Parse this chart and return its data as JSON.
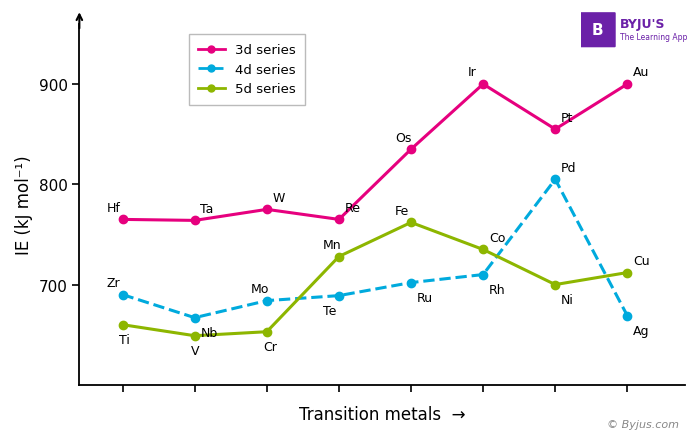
{
  "series_3d": {
    "label": "3d series",
    "color": "#e6007e",
    "linestyle": "-",
    "linewidth": 2.2,
    "marker": "o",
    "markersize": 6,
    "elements": [
      "Hf",
      "Ta",
      "W",
      "Re",
      "Os",
      "Ir",
      "Pt",
      "Au"
    ],
    "x": [
      1,
      2,
      3,
      4,
      5,
      6,
      7,
      8
    ],
    "y": [
      765,
      764,
      775,
      765,
      835,
      900,
      855,
      900
    ],
    "label_dx": [
      -0.22,
      0.08,
      0.08,
      0.08,
      -0.22,
      -0.22,
      0.08,
      0.08
    ],
    "label_dy": [
      12,
      12,
      12,
      12,
      12,
      12,
      12,
      12
    ]
  },
  "series_4d": {
    "label": "4d series",
    "color": "#00aadd",
    "linestyle": "--",
    "linewidth": 2.2,
    "marker": "o",
    "markersize": 6,
    "elements": [
      "Zr",
      "Nb",
      "Mo",
      "Te",
      "Ru",
      "Rh",
      "Pd",
      "Ag"
    ],
    "x": [
      1,
      2,
      3,
      4,
      5,
      6,
      7,
      8
    ],
    "y": [
      690,
      667,
      684,
      689,
      702,
      710,
      805,
      669
    ],
    "label_dx": [
      -0.22,
      0.08,
      -0.22,
      -0.22,
      0.08,
      0.08,
      0.08,
      0.08
    ],
    "label_dy": [
      12,
      -15,
      12,
      -15,
      -15,
      -15,
      12,
      -15
    ]
  },
  "series_5d": {
    "label": "5d series",
    "color": "#8db600",
    "linestyle": "-",
    "linewidth": 2.2,
    "marker": "o",
    "markersize": 6,
    "elements": [
      "Ti",
      "V",
      "Cr",
      "Mn",
      "Fe",
      "Co",
      "Ni",
      "Cu"
    ],
    "x": [
      1,
      2,
      3,
      4,
      5,
      6,
      7,
      8
    ],
    "y": [
      660,
      649,
      653,
      728,
      762,
      735,
      700,
      712
    ],
    "label_dx": [
      -0.05,
      -0.05,
      -0.05,
      -0.22,
      -0.22,
      0.08,
      0.08,
      0.08
    ],
    "label_dy": [
      -15,
      -15,
      -15,
      12,
      12,
      12,
      -15,
      12
    ]
  },
  "xlabel": "Transition metals",
  "ylabel": "IE (kJ mol⁻¹)",
  "yticks": [
    700,
    800,
    900
  ],
  "ylim": [
    600,
    960
  ],
  "xlim": [
    0.4,
    8.8
  ],
  "bg_color": "#ffffff",
  "byju_text": "© Byjus.com",
  "label_fontsize": 12,
  "tick_label_fontsize": 11,
  "element_fontsize": 9
}
